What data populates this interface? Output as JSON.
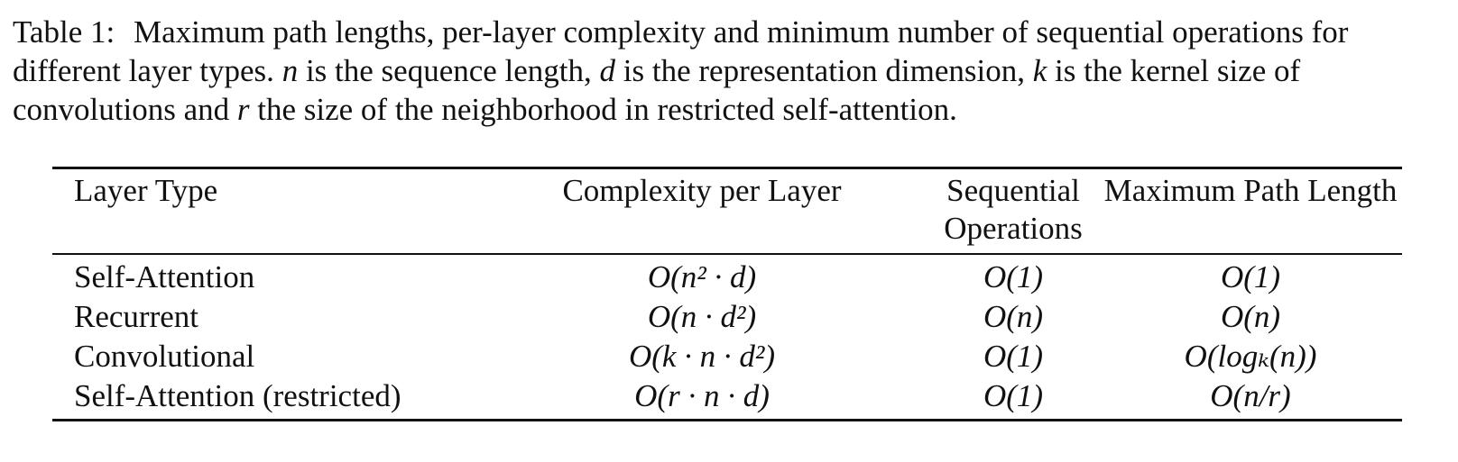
{
  "caption": {
    "label": "Table 1:",
    "parts": [
      "Maximum path lengths, per-layer complexity and minimum number of sequential operations for different layer types.",
      "n",
      "is the sequence length,",
      "d",
      "is the representation dimension,",
      "k",
      "is the kernel size of convolutions and",
      "r",
      "the size of the neighborhood in restricted self-attention."
    ]
  },
  "table": {
    "headers": {
      "layer_type": "Layer Type",
      "complexity": "Complexity per Layer",
      "sequential_line1": "Sequential",
      "sequential_line2": "Operations",
      "path_length": "Maximum Path Length"
    },
    "rows": [
      {
        "layer_type": "Self-Attention",
        "complexity": "O(n² · d)",
        "sequential": "O(1)",
        "path_length": "O(1)"
      },
      {
        "layer_type": "Recurrent",
        "complexity": "O(n · d²)",
        "sequential": "O(n)",
        "path_length": "O(n)"
      },
      {
        "layer_type": "Convolutional",
        "complexity": "O(k · n · d²)",
        "sequential": "O(1)",
        "path_length": "O(logₖ(n))"
      },
      {
        "layer_type": "Self-Attention (restricted)",
        "complexity": "O(r · n · d)",
        "sequential": "O(1)",
        "path_length": "O(n/r)"
      }
    ]
  }
}
